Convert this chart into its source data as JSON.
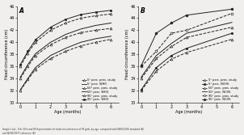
{
  "title_A": "A",
  "title_B": "B",
  "xlabel": "Age (months)",
  "ylabel": "Head circumference (cm)",
  "xlim": [
    -0.2,
    6.5
  ],
  "ylim": [
    30,
    46
  ],
  "yticks": [
    30,
    32,
    34,
    36,
    38,
    40,
    42,
    44,
    46
  ],
  "xticks": [
    0,
    1,
    2,
    3,
    4,
    5,
    6
  ],
  "panel_A": {
    "ages": [
      0,
      0.5,
      1,
      2,
      3,
      4,
      5,
      6
    ],
    "p5_pres": [
      32.0,
      33.8,
      35.5,
      37.3,
      38.5,
      39.4,
      40.0,
      40.5
    ],
    "p5_WHO": [
      32.1,
      34.0,
      35.8,
      37.8,
      39.0,
      40.0,
      40.6,
      41.0
    ],
    "p50_pres": [
      34.0,
      36.0,
      37.8,
      39.6,
      40.8,
      41.6,
      42.0,
      42.3
    ],
    "p50_WHO": [
      34.2,
      36.3,
      38.1,
      40.0,
      41.3,
      42.2,
      42.8,
      43.2
    ],
    "p95_pres": [
      36.0,
      38.2,
      40.0,
      42.0,
      43.2,
      44.0,
      44.4,
      44.7
    ],
    "p95_WHO": [
      36.3,
      38.5,
      40.4,
      42.5,
      43.8,
      44.6,
      45.0,
      45.3
    ]
  },
  "panel_B": {
    "ages": [
      0,
      1,
      2,
      3,
      6
    ],
    "p5_pres": [
      32.0,
      35.2,
      37.2,
      38.3,
      40.5
    ],
    "p5_NCHS": [
      32.1,
      35.8,
      37.8,
      39.0,
      41.5
    ],
    "p50_pres": [
      34.0,
      37.3,
      39.3,
      40.8,
      42.5
    ],
    "p50_NCHS": [
      34.2,
      37.8,
      39.8,
      41.5,
      43.3
    ],
    "p95_pres": [
      36.0,
      38.5,
      41.5,
      42.0,
      44.8
    ],
    "p95_NCHS": [
      36.1,
      41.5,
      43.2,
      44.5,
      45.5
    ]
  },
  "caption": "Graph 2 a-b - 5th, 50th and 95th percentiles for head circumference of 95 girls, by age, compared with WHO/2006 standard (A)\nand NCHS/1977 reference (B)",
  "line_color": "#222222",
  "bg_color": "#f0efed"
}
